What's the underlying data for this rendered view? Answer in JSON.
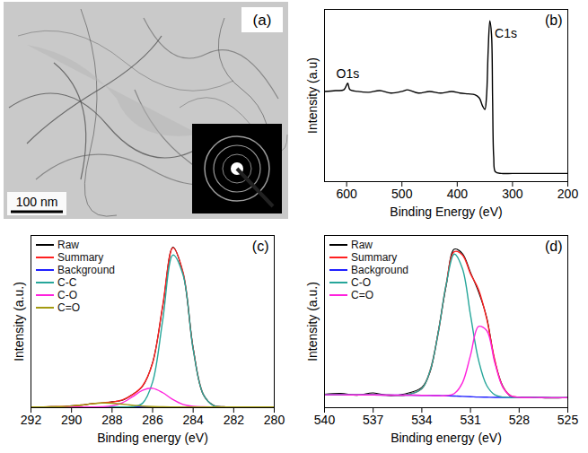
{
  "chart_data": [
    {
      "type": "image",
      "label": "(a)",
      "scale_bar": "100 nm"
    },
    {
      "type": "line",
      "label": "(b)",
      "x_label": "Binding Energy (eV)",
      "y_label": "Intensity (a.u)",
      "x": [
        640,
        620,
        605,
        598,
        594,
        580,
        560,
        540,
        520,
        500,
        490,
        470,
        450,
        430,
        410,
        395,
        380,
        368,
        360,
        354,
        350,
        347,
        344,
        341,
        338,
        336,
        334,
        331,
        320,
        300,
        250,
        200
      ],
      "series": [
        {
          "color": "#000000",
          "values": [
            55,
            55.5,
            56,
            60,
            56,
            55,
            54.5,
            55.5,
            54,
            55,
            56,
            54,
            55,
            54,
            55,
            54,
            53.5,
            53,
            51,
            46,
            44,
            52,
            80,
            98,
            90,
            50,
            15,
            6,
            5,
            5,
            5,
            5
          ]
        }
      ],
      "xlim": [
        640,
        200
      ],
      "xticks": [
        600,
        500,
        400,
        300,
        200
      ],
      "ylim": [
        0,
        105
      ],
      "tick_labels": "x",
      "annotations": [
        {
          "text": "O1s",
          "x": 598,
          "y": 63
        },
        {
          "text": "C1s",
          "x": 312,
          "y": 88
        }
      ]
    },
    {
      "type": "line",
      "label": "(c)",
      "x_label": "Binding energy (eV)",
      "y_label": "Intensity (a.u.)",
      "x": [
        292,
        291.5,
        291,
        290.5,
        290,
        289.5,
        289,
        288.5,
        288,
        287.5,
        287,
        286.5,
        286,
        285.5,
        285,
        284.5,
        284,
        283.5,
        283,
        282.5,
        282,
        281.5,
        281,
        280.5,
        280
      ],
      "series": [
        {
          "name": "Raw",
          "color": "#000000",
          "values": [
            0.6,
            0.4,
            0.7,
            0.6,
            1.2,
            1.6,
            2.6,
            3.0,
            3.8,
            4.7,
            8.4,
            13.6,
            28.9,
            64.8,
            102.5,
            86.0,
            38.2,
            8.3,
            1.6,
            0.5,
            0.6,
            0.4,
            0.5,
            0.6,
            0.5
          ]
        },
        {
          "name": "Summary",
          "color": "#ff2020",
          "values": [
            0.5,
            0.5,
            0.6,
            0.7,
            1.1,
            1.7,
            2.5,
            3.1,
            3.6,
            4.9,
            8.2,
            13.9,
            28.5,
            65.3,
            102.2,
            86.5,
            37.7,
            8.6,
            1.4,
            0.6,
            0.5,
            0.5,
            0.5,
            0.5,
            0.5
          ]
        },
        {
          "name": "Background",
          "color": "#2020ff",
          "values": [
            0.5,
            0.5,
            0.5,
            0.5,
            0.5,
            0.5,
            0.5,
            0.5,
            0.5,
            0.5,
            0.5,
            0.5,
            0.5,
            0.5,
            0.5,
            0.5,
            0.5,
            0.5,
            0.5,
            0.5,
            0.5,
            0.5,
            0.5,
            0.5,
            0.5
          ]
        },
        {
          "name": "C-C",
          "color": "#26a69a",
          "values": [
            0.5,
            0.5,
            0.5,
            0.5,
            0.5,
            0.5,
            0.5,
            0.5,
            0.5,
            0.5,
            0.7,
            2.8,
            16.4,
            56.1,
            97.5,
            84.9,
            37.3,
            8.5,
            1.4,
            0.6,
            0.5,
            0.5,
            0.5,
            0.5,
            0.5
          ]
        },
        {
          "name": "C-O",
          "color": "#ff22dd",
          "values": [
            0.5,
            0.5,
            0.5,
            0.5,
            0.5,
            0.5,
            0.5,
            0.6,
            1.2,
            3.1,
            6.9,
            11.1,
            12.4,
            9.6,
            5.2,
            2.1,
            0.9,
            0.6,
            0.5,
            0.5,
            0.5,
            0.5,
            0.5,
            0.5,
            0.5
          ]
        },
        {
          "name": "C=O",
          "color": "#a39a10",
          "values": [
            0.5,
            0.5,
            0.6,
            0.7,
            1.1,
            1.7,
            2.5,
            3.0,
            2.9,
            2.3,
            1.6,
            1.0,
            0.7,
            0.6,
            0.5,
            0.5,
            0.5,
            0.5,
            0.5,
            0.5,
            0.5,
            0.5,
            0.5,
            0.5,
            0.5
          ]
        }
      ],
      "xlim": [
        292,
        280
      ],
      "xticks": [
        292,
        290,
        288,
        286,
        284,
        282,
        280
      ],
      "ylim": [
        0,
        110
      ],
      "tick_labels": "x",
      "legend": "upper left"
    },
    {
      "type": "line",
      "label": "(d)",
      "x_label": "Binding energy (eV)",
      "y_label": "Intensity (a.u.)",
      "x": [
        540,
        539,
        538,
        537,
        536,
        535,
        534,
        533.5,
        533,
        532.5,
        532,
        531.5,
        531,
        530.5,
        530,
        529.5,
        529,
        528.5,
        528,
        527,
        526,
        525
      ],
      "series": [
        {
          "name": "Raw",
          "color": "#000000",
          "values": [
            7.8,
            8.3,
            7.2,
            8.6,
            7.0,
            8.1,
            11.8,
            20.6,
            43.5,
            70.8,
            92.0,
            89.5,
            78.5,
            67.2,
            52.4,
            27.0,
            12.4,
            6.5,
            6.2,
            6.0,
            5.6,
            5.9
          ]
        },
        {
          "name": "Summary",
          "color": "#ff2020",
          "values": [
            7.5,
            7.5,
            7.4,
            7.4,
            7.3,
            7.4,
            11.1,
            21.2,
            42.9,
            71.6,
            90.6,
            88.7,
            77.8,
            68.5,
            51.6,
            27.6,
            12.0,
            6.8,
            6.0,
            5.9,
            5.8,
            5.8
          ]
        },
        {
          "name": "Background",
          "color": "#2020ff",
          "values": [
            7.5,
            7.5,
            7.4,
            7.4,
            7.3,
            7.3,
            7.2,
            7.1,
            7.0,
            6.9,
            6.8,
            6.6,
            6.4,
            6.2,
            6.1,
            6.0,
            6.0,
            5.9,
            5.9,
            5.9,
            5.8,
            5.8
          ]
        },
        {
          "name": "C-O",
          "color": "#26a69a",
          "values": [
            7.5,
            7.5,
            7.4,
            7.4,
            7.3,
            7.4,
            11.1,
            21.2,
            42.9,
            71.5,
            89.2,
            80.9,
            53.8,
            27.5,
            12.9,
            7.5,
            6.2,
            5.9,
            5.9,
            5.9,
            5.8,
            5.8
          ]
        },
        {
          "name": "C=O",
          "color": "#ff22dd",
          "values": [
            7.5,
            7.5,
            7.4,
            7.4,
            7.3,
            7.3,
            7.2,
            7.1,
            7.0,
            7.0,
            8.2,
            14.4,
            30.4,
            47.2,
            44.8,
            26.1,
            11.8,
            6.8,
            6.0,
            5.9,
            5.8,
            5.8
          ]
        }
      ],
      "xlim": [
        540,
        525
      ],
      "xticks": [
        540,
        537,
        534,
        531,
        528,
        525
      ],
      "ylim": [
        0,
        100
      ],
      "tick_labels": "x",
      "legend": "upper left"
    }
  ]
}
